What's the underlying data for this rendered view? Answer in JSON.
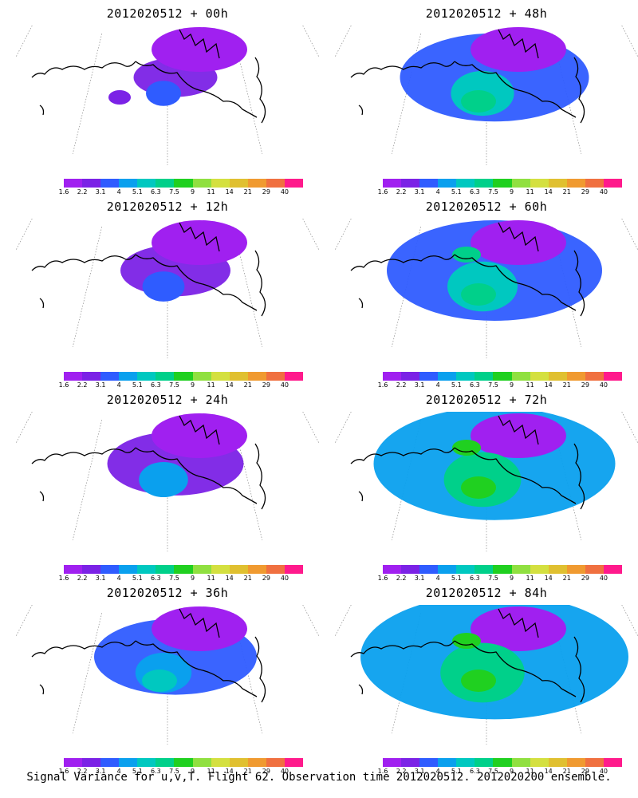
{
  "colorbar": {
    "colors": [
      "#a020f0",
      "#7b22e6",
      "#2f5cff",
      "#0aa0ee",
      "#00c8c0",
      "#00d08a",
      "#20d020",
      "#90e040",
      "#d4e040",
      "#e0c030",
      "#f09a30",
      "#f07040",
      "#ff1a8c"
    ],
    "ticks": [
      "1.6",
      "2.2",
      "3.1",
      "4",
      "5.1",
      "6.3",
      "7.5",
      "9",
      "11",
      "14",
      "21",
      "29",
      "40"
    ]
  },
  "panels": [
    {
      "title": "2012020512 + 00h",
      "level": 0
    },
    {
      "title": "2012020512 + 48h",
      "level": 4
    },
    {
      "title": "2012020512 + 12h",
      "level": 1
    },
    {
      "title": "2012020512 + 60h",
      "level": 5
    },
    {
      "title": "2012020512 + 24h",
      "level": 2
    },
    {
      "title": "2012020512 + 72h",
      "level": 6
    },
    {
      "title": "2012020512 + 36h",
      "level": 3
    },
    {
      "title": "2012020512 + 84h",
      "level": 7
    }
  ],
  "footer": "Signal Variance for u,v,T. Flight 62. Observation time 2012020512. 2012020200 ensemble."
}
